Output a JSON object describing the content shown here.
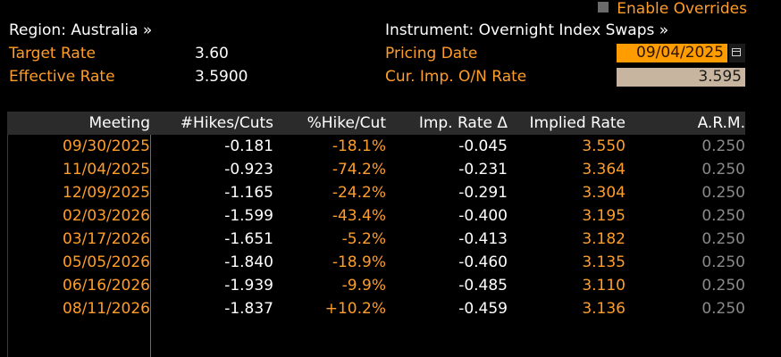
{
  "override": {
    "label": "Enable Overrides"
  },
  "left_info": {
    "region": "Region: Australia »",
    "target_label": "Target Rate",
    "target_value": "3.60",
    "effective_label": "Effective Rate",
    "effective_value": "3.5900"
  },
  "right_info": {
    "instrument": "Instrument: Overnight Index Swaps »",
    "pricing_label": "Pricing Date",
    "pricing_value": "09/04/2025",
    "imp_label": "Cur. Imp. O/N Rate",
    "imp_value": "3.595"
  },
  "table": {
    "headers": [
      "Meeting",
      "#Hikes/Cuts",
      "%Hike/Cut",
      "Imp. Rate Δ",
      "Implied Rate",
      "A.R.M."
    ],
    "rows": [
      [
        "09/30/2025",
        "-0.181",
        "-18.1%",
        "-0.045",
        "3.550",
        "0.250"
      ],
      [
        "11/04/2025",
        "-0.923",
        "-74.2%",
        "-0.231",
        "3.364",
        "0.250"
      ],
      [
        "12/09/2025",
        "-1.165",
        "-24.2%",
        "-0.291",
        "3.304",
        "0.250"
      ],
      [
        "02/03/2026",
        "-1.599",
        "-43.4%",
        "-0.400",
        "3.195",
        "0.250"
      ],
      [
        "03/17/2026",
        "-1.651",
        "-5.2%",
        "-0.413",
        "3.182",
        "0.250"
      ],
      [
        "05/05/2026",
        "-1.840",
        "-18.9%",
        "-0.460",
        "3.135",
        "0.250"
      ],
      [
        "06/16/2026",
        "-1.939",
        "-9.9%",
        "-0.485",
        "3.110",
        "0.250"
      ],
      [
        "08/11/2026",
        "-1.837",
        "+10.2%",
        "-0.459",
        "3.136",
        "0.250"
      ]
    ]
  },
  "colors": {
    "accent_orange": "#ff9d2a",
    "header_bg": "#2b2b2b",
    "muted": "#8a8a8a"
  }
}
